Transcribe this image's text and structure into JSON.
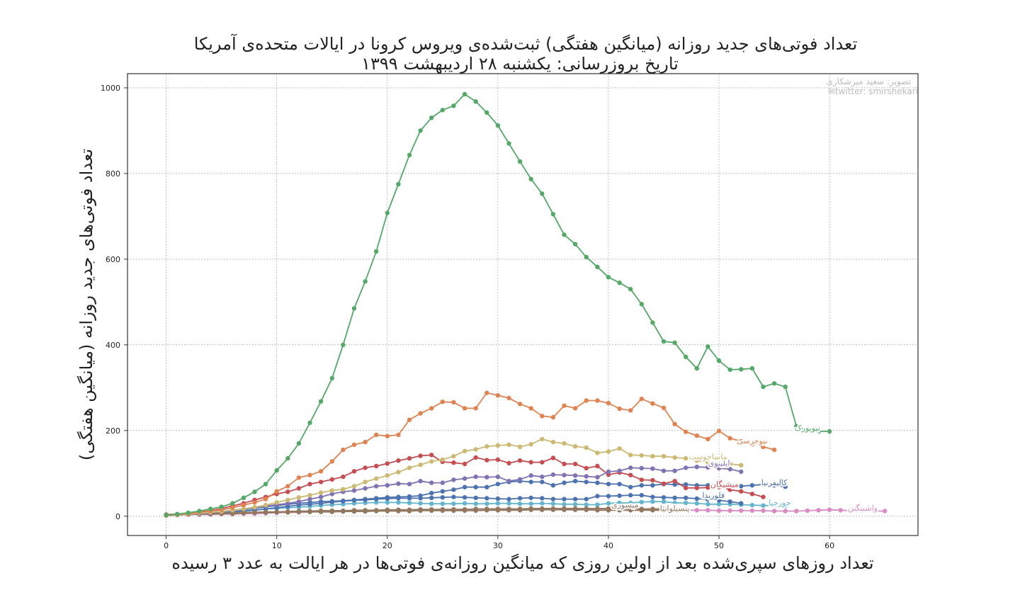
{
  "chart_data": {
    "type": "line",
    "title": "تعداد فوتی‌های جدید روزانه (میانگین هفتگی) ثبت‌شده‌ی ویروس کرونا در ایالات متحده‌ی آمریکا",
    "subtitle": "تاریخ بروزرسانی: یکشنبه ۲۸ اردیبهشت ۱۳۹۹",
    "xlabel": "تعداد روزهای سپری‌شده بعد از اولین روزی که میانگین روزانه‌ی فوتی‌ها در هر ایالت به عدد ۳ رسیده",
    "ylabel": "تعداد فوتی‌های جدید روزانه (میانگین هفتگی)",
    "credit": [
      "تصویر: سعید میرشکاری",
      "✉twitter: smirshekari"
    ],
    "xlim": [
      -3.5,
      68
    ],
    "ylim": [
      -45,
      1033
    ],
    "xticks": [
      0,
      10,
      20,
      30,
      40,
      50,
      60
    ],
    "yticks": [
      0,
      200,
      400,
      600,
      800,
      1000
    ],
    "grid": true,
    "series": [
      {
        "name": "نیویورک",
        "color": "#55a868",
        "label_x": 58,
        "label_y": 200,
        "x": [
          0,
          1,
          2,
          3,
          4,
          5,
          6,
          7,
          8,
          9,
          10,
          11,
          12,
          13,
          14,
          15,
          16,
          17,
          18,
          19,
          20,
          21,
          22,
          23,
          24,
          25,
          26,
          27,
          28,
          29,
          30,
          31,
          32,
          33,
          34,
          35,
          36,
          37,
          38,
          39,
          40,
          41,
          42,
          43,
          44,
          45,
          46,
          47,
          48,
          49,
          50,
          51,
          52,
          53,
          54,
          55,
          56,
          57,
          58,
          59,
          60
        ],
        "y": [
          3,
          5,
          8,
          12,
          17,
          22,
          30,
          43,
          57,
          75,
          107,
          135,
          170,
          218,
          268,
          322,
          400,
          485,
          548,
          618,
          708,
          775,
          843,
          900,
          930,
          948,
          958,
          985,
          968,
          942,
          912,
          870,
          828,
          787,
          753,
          705,
          657,
          635,
          605,
          582,
          558,
          545,
          530,
          495,
          452,
          408,
          405,
          372,
          345,
          396,
          363,
          342,
          343,
          345,
          302,
          310,
          302,
          210,
          200,
          198,
          198
        ]
      },
      {
        "name": "نیوجرسی",
        "color": "#dd8452",
        "label_x": 53,
        "label_y": 170,
        "x": [
          0,
          1,
          2,
          3,
          4,
          5,
          6,
          7,
          8,
          9,
          10,
          11,
          12,
          13,
          14,
          15,
          16,
          17,
          18,
          19,
          20,
          21,
          22,
          23,
          24,
          25,
          26,
          27,
          28,
          29,
          30,
          31,
          32,
          33,
          34,
          35,
          36,
          37,
          38,
          39,
          40,
          41,
          42,
          43,
          44,
          45,
          46,
          47,
          48,
          49,
          50,
          51,
          52,
          53,
          54,
          55
        ],
        "y": [
          2,
          4,
          6,
          9,
          12,
          15,
          20,
          26,
          32,
          40,
          58,
          70,
          90,
          96,
          105,
          128,
          155,
          167,
          173,
          190,
          187,
          190,
          225,
          240,
          252,
          267,
          266,
          252,
          252,
          288,
          282,
          276,
          262,
          252,
          234,
          231,
          258,
          252,
          270,
          270,
          264,
          251,
          247,
          274,
          263,
          253,
          215,
          197,
          188,
          180,
          199,
          182,
          175,
          168,
          162,
          155
        ]
      },
      {
        "name": "ماساچوست",
        "color": "#ccb974",
        "label_x": 49,
        "label_y": 133,
        "x": [
          0,
          1,
          2,
          3,
          4,
          5,
          6,
          7,
          8,
          9,
          10,
          11,
          12,
          13,
          14,
          15,
          16,
          17,
          18,
          19,
          20,
          21,
          22,
          23,
          24,
          25,
          26,
          27,
          28,
          29,
          30,
          31,
          32,
          33,
          34,
          35,
          36,
          37,
          38,
          39,
          40,
          41,
          42,
          43,
          44,
          45,
          46,
          47,
          48,
          49,
          50,
          51,
          52
        ],
        "y": [
          2,
          3,
          5,
          7,
          9,
          11,
          14,
          17,
          21,
          26,
          32,
          38,
          44,
          49,
          55,
          60,
          63,
          70,
          80,
          88,
          95,
          103,
          113,
          120,
          128,
          132,
          140,
          152,
          156,
          163,
          165,
          167,
          162,
          168,
          180,
          173,
          170,
          163,
          160,
          148,
          151,
          158,
          143,
          142,
          140,
          140,
          137,
          135,
          130,
          126,
          124,
          122,
          119
        ]
      },
      {
        "name": "ایلینوی",
        "color": "#8172b3",
        "label_x": 50,
        "label_y": 118,
        "x": [
          0,
          1,
          2,
          3,
          4,
          5,
          6,
          7,
          8,
          9,
          10,
          11,
          12,
          13,
          14,
          15,
          16,
          17,
          18,
          19,
          20,
          21,
          22,
          23,
          24,
          25,
          26,
          27,
          28,
          29,
          30,
          31,
          32,
          33,
          34,
          35,
          36,
          37,
          38,
          39,
          40,
          41,
          42,
          43,
          44,
          45,
          46,
          47,
          48,
          49,
          50,
          51,
          52
        ],
        "y": [
          2,
          3,
          4,
          6,
          8,
          11,
          14,
          17,
          20,
          24,
          27,
          30,
          34,
          40,
          45,
          52,
          57,
          60,
          65,
          70,
          72,
          76,
          75,
          82,
          78,
          78,
          85,
          88,
          92,
          91,
          92,
          82,
          86,
          95,
          92,
          97,
          96,
          95,
          93,
          91,
          104,
          106,
          113,
          112,
          111,
          106,
          106,
          113,
          115,
          114,
          112,
          110,
          104
        ]
      },
      {
        "name": "پنسیلوانیا",
        "color": "#937860",
        "label_x": 46,
        "label_y": 12,
        "x": [
          0,
          1,
          2,
          3,
          4,
          5,
          6,
          7,
          8,
          9,
          10,
          11,
          12,
          13,
          14,
          15,
          16,
          17,
          18,
          19,
          20,
          21,
          22,
          23,
          24,
          25,
          26,
          27,
          28,
          29,
          30,
          31,
          32,
          33,
          34,
          35,
          36,
          37,
          38,
          39,
          40,
          41,
          42,
          43,
          44,
          45,
          46
        ],
        "y": [
          2,
          3,
          4,
          5,
          6,
          7,
          8,
          9,
          9,
          10,
          10,
          11,
          12,
          12,
          13,
          13,
          13,
          14,
          14,
          14,
          15,
          15,
          15,
          16,
          16,
          16,
          16,
          16,
          17,
          17,
          17,
          17,
          17,
          18,
          18,
          18,
          18,
          18,
          18,
          18,
          18,
          18,
          18,
          17,
          17,
          17,
          17
        ]
      },
      {
        "name": "میشیگان",
        "color": "#c44e52",
        "label_x": 50.5,
        "label_y": 68,
        "x": [
          0,
          1,
          2,
          3,
          4,
          5,
          6,
          7,
          8,
          9,
          10,
          11,
          12,
          13,
          14,
          15,
          16,
          17,
          18,
          19,
          20,
          21,
          22,
          23,
          24,
          25,
          26,
          27,
          28,
          29,
          30,
          31,
          32,
          33,
          34,
          35,
          36,
          37,
          38,
          39,
          40,
          41,
          42,
          43,
          44,
          45,
          46,
          47,
          48,
          49,
          50,
          51,
          52,
          53,
          54
        ],
        "y": [
          4,
          5,
          7,
          10,
          13,
          18,
          24,
          30,
          38,
          45,
          52,
          57,
          65,
          75,
          80,
          86,
          92,
          105,
          113,
          117,
          123,
          130,
          135,
          141,
          143,
          127,
          125,
          122,
          137,
          131,
          132,
          124,
          130,
          126,
          126,
          136,
          122,
          122,
          112,
          117,
          97,
          102,
          96,
          85,
          84,
          76,
          82,
          66,
          66,
          67,
          68,
          62,
          58,
          52,
          45
        ]
      },
      {
        "name": "کالیفرنیا",
        "color": "#4c72b0",
        "label_x": 55,
        "label_y": 72,
        "x": [
          0,
          1,
          2,
          3,
          4,
          5,
          6,
          7,
          8,
          9,
          10,
          11,
          12,
          13,
          14,
          15,
          16,
          17,
          18,
          19,
          20,
          21,
          22,
          23,
          24,
          25,
          26,
          27,
          28,
          29,
          30,
          31,
          32,
          33,
          34,
          35,
          36,
          37,
          38,
          39,
          40,
          41,
          42,
          43,
          44,
          45,
          46,
          47,
          48,
          49,
          50,
          51,
          52,
          53,
          54,
          55,
          56
        ],
        "y": [
          3,
          4,
          5,
          7,
          9,
          11,
          14,
          16,
          19,
          22,
          25,
          28,
          30,
          32,
          34,
          35,
          36,
          38,
          40,
          42,
          44,
          45,
          46,
          48,
          54,
          58,
          62,
          68,
          68,
          68,
          75,
          80,
          82,
          80,
          80,
          72,
          78,
          82,
          80,
          78,
          75,
          75,
          68,
          72,
          72,
          75,
          74,
          74,
          72,
          72,
          72,
          71,
          70,
          72,
          74,
          72,
          69
        ]
      },
      {
        "name": "فلوریدا",
        "color": "#4c72b0",
        "label_x": 49.5,
        "label_y": 43,
        "x": [
          0,
          1,
          2,
          3,
          4,
          5,
          6,
          7,
          8,
          9,
          10,
          11,
          12,
          13,
          14,
          15,
          16,
          17,
          18,
          19,
          20,
          21,
          22,
          23,
          24,
          25,
          26,
          27,
          28,
          29,
          30,
          31,
          32,
          33,
          34,
          35,
          36,
          37,
          38,
          39,
          40,
          41,
          42,
          43,
          44,
          45,
          46,
          47,
          48,
          49,
          50,
          51,
          52
        ],
        "y": [
          2,
          3,
          4,
          5,
          6,
          8,
          10,
          12,
          14,
          17,
          20,
          23,
          26,
          28,
          30,
          33,
          35,
          37,
          38,
          40,
          41,
          42,
          42,
          42,
          43,
          44,
          45,
          44,
          43,
          42,
          41,
          40,
          42,
          43,
          42,
          40,
          40,
          40,
          40,
          47,
          47,
          48,
          49,
          49,
          45,
          44,
          43,
          43,
          41,
          39,
          37,
          34,
          30
        ]
      },
      {
        "name": "جورجیا",
        "color": "#64b5cd",
        "label_x": 55.5,
        "label_y": 25,
        "x": [
          0,
          1,
          2,
          3,
          4,
          5,
          6,
          7,
          8,
          9,
          10,
          11,
          12,
          13,
          14,
          15,
          16,
          17,
          18,
          19,
          20,
          21,
          22,
          23,
          24,
          25,
          26,
          27,
          28,
          29,
          30,
          31,
          32,
          33,
          34,
          35,
          36,
          37,
          38,
          39,
          40,
          41,
          42,
          43,
          44,
          45,
          46,
          47,
          48,
          49,
          50,
          51,
          52,
          53,
          54,
          55,
          56
        ],
        "y": [
          2,
          3,
          4,
          5,
          7,
          9,
          11,
          13,
          15,
          17,
          18,
          20,
          21,
          23,
          25,
          27,
          28,
          30,
          31,
          32,
          32,
          32,
          31,
          30,
          29,
          29,
          29,
          30,
          29,
          29,
          30,
          30,
          29,
          29,
          30,
          29,
          28,
          28,
          27,
          27,
          30,
          31,
          31,
          33,
          34,
          34,
          31,
          31,
          30,
          28,
          28,
          28,
          27,
          26,
          25,
          25,
          24
        ]
      },
      {
        "name": "میسوری",
        "color": "#937860",
        "label_x": 41.5,
        "label_y": 20,
        "x": [
          0,
          1,
          2,
          3,
          4,
          5,
          6,
          7,
          8,
          9,
          10,
          11,
          12,
          13,
          14,
          15,
          16,
          17,
          18,
          19,
          20,
          21,
          22,
          23,
          24,
          25,
          26,
          27,
          28,
          29,
          30,
          31,
          32,
          33,
          34,
          35,
          36,
          37,
          38,
          39,
          40,
          41,
          42,
          43,
          44,
          45
        ],
        "y": [
          2,
          3,
          4,
          5,
          5,
          6,
          6,
          7,
          8,
          8,
          9,
          9,
          10,
          10,
          10,
          10,
          11,
          11,
          11,
          12,
          12,
          12,
          12,
          13,
          13,
          13,
          13,
          13,
          13,
          14,
          14,
          14,
          14,
          15,
          15,
          15,
          15,
          15,
          15,
          14,
          14,
          14,
          14,
          14,
          14,
          14
        ]
      },
      {
        "name": "واشینگتن",
        "color": "#da8bc3",
        "label_x": 63,
        "label_y": 13,
        "x": [
          0,
          1,
          2,
          3,
          4,
          5,
          6,
          7,
          8,
          9,
          10,
          11,
          12,
          13,
          14,
          15,
          16,
          17,
          18,
          19,
          20,
          21,
          22,
          23,
          24,
          25,
          26,
          27,
          28,
          29,
          30,
          31,
          32,
          33,
          34,
          35,
          36,
          37,
          38,
          39,
          40,
          41,
          42,
          43,
          44,
          45,
          46,
          47,
          48,
          49,
          50,
          51,
          52,
          53,
          54,
          55,
          56,
          57,
          58,
          59,
          60,
          61,
          62,
          63,
          64,
          65
        ],
        "y": [
          3,
          3,
          4,
          4,
          4,
          5,
          5,
          6,
          6,
          7,
          8,
          9,
          9,
          10,
          11,
          11,
          12,
          12,
          13,
          13,
          14,
          14,
          15,
          15,
          15,
          16,
          16,
          16,
          16,
          17,
          17,
          17,
          17,
          17,
          16,
          16,
          16,
          16,
          16,
          16,
          16,
          15,
          15,
          15,
          15,
          15,
          14,
          14,
          14,
          14,
          13,
          13,
          13,
          13,
          13,
          12,
          12,
          12,
          13,
          14,
          15,
          14,
          13,
          13,
          12,
          12
        ]
      }
    ]
  }
}
